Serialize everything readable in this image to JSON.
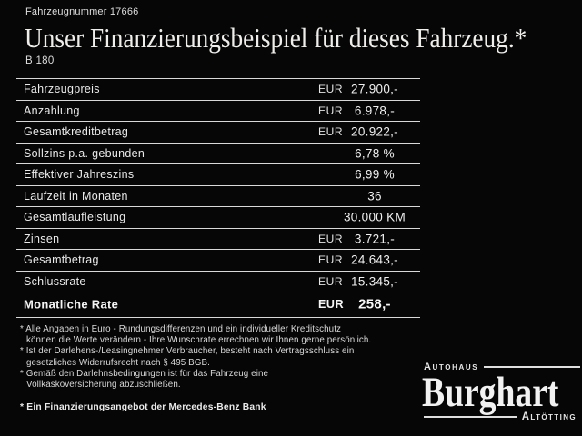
{
  "header": {
    "vehicle_number": "Fahrzeugnummer 17666",
    "title": "Unser Finanzierungsbeispiel für dieses Fahrzeug.*",
    "model": "B 180"
  },
  "table": {
    "rows": [
      {
        "label": "Fahrzeugpreis",
        "currency": "EUR",
        "value": "27.900,-"
      },
      {
        "label": "Anzahlung",
        "currency": "EUR",
        "value": "6.978,-"
      },
      {
        "label": "Gesamtkreditbetrag",
        "currency": "EUR",
        "value": "20.922,-"
      },
      {
        "label": "Sollzins p.a. gebunden",
        "currency": "",
        "value": "6,78 %"
      },
      {
        "label": "Effektiver Jahreszins",
        "currency": "",
        "value": "6,99 %"
      },
      {
        "label": "Laufzeit in Monaten",
        "currency": "",
        "value": "36"
      },
      {
        "label": "Gesamtlaufleistung",
        "currency": "",
        "value": "30.000 KM"
      },
      {
        "label": "Zinsen",
        "currency": "EUR",
        "value": "3.721,-"
      },
      {
        "label": "Gesamtbetrag",
        "currency": "EUR",
        "value": "24.643,-"
      },
      {
        "label": "Schlussrate",
        "currency": "EUR",
        "value": "15.345,-"
      },
      {
        "label": "Monatliche Rate",
        "currency": "EUR",
        "value": "258,-"
      }
    ]
  },
  "footnotes": {
    "items": [
      {
        "lines": [
          "* Alle Angaben in Euro - Rundungsdifferenzen und ein individueller Kreditschutz",
          "können die Werte verändern - Ihre Wunschrate errechnen wir Ihnen gerne persönlich."
        ]
      },
      {
        "lines": [
          "* Ist der Darlehens-/Leasingnehmer Verbraucher, besteht nach Vertragsschluss ein",
          "gesetzliches Widerrufsrecht nach § 495 BGB."
        ]
      },
      {
        "lines": [
          "* Gemäß den Darlehnsbedingungen ist für das Fahrzeug eine",
          "Vollkaskoversicherung abzuschließen."
        ]
      }
    ],
    "financing_note": "* Ein Finanzierungsangebot der Mercedes-Benz Bank"
  },
  "dealer_logo": {
    "top_label": "Autohaus",
    "name": "Burghart",
    "bottom_label": "Altötting"
  },
  "colors": {
    "background": "#060606",
    "text": "#e8e8e8",
    "separator_line": "#d8d8d8"
  }
}
